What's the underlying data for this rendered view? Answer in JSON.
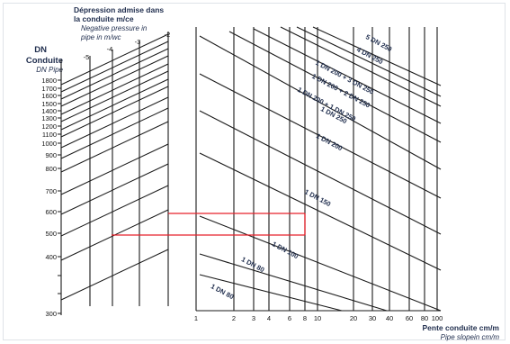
{
  "header": {
    "title_fr_line1": "Dépression admise dans",
    "title_fr_line2": "la conduite m/ce",
    "title_en_line1": "Negative pressure in",
    "title_en_line2": "pipe in m/wc"
  },
  "left_axis": {
    "title_fr_line1": "DN",
    "title_fr_line2": "Conduite",
    "title_en": "DN Pipe",
    "ticks": [
      "1800",
      "1700",
      "1600",
      "1500",
      "1400",
      "1300",
      "1200",
      "1100",
      "1000",
      "900",
      "800",
      "700",
      "600",
      "500",
      "400",
      "300"
    ]
  },
  "pressure_scale": {
    "ticks": [
      "-5",
      "-4",
      "-3",
      "-2"
    ]
  },
  "bottom_axis": {
    "title_fr": "Pente conduite cm/m",
    "title_en": "Pipe slopein cm/m",
    "ticks": [
      "1",
      "2",
      "3",
      "4",
      "6",
      "8",
      "10",
      "20",
      "30",
      "40",
      "60",
      "80",
      "100"
    ]
  },
  "curve_labels": [
    "5 DN 250",
    "4 DN 250",
    "1 DN 200 + 3 DN 250",
    "1 DN 200 + 2 DN 250",
    "1 DN 200 + 1 DN 250",
    "1 DN 250",
    "1 DN 200",
    "1 DN 150",
    "1 DN 100",
    "1 DN 80",
    "1 DN 80"
  ],
  "colors": {
    "line": "#1a1a1a",
    "label": "#1f2d4d",
    "highlight": "#e8202a"
  }
}
